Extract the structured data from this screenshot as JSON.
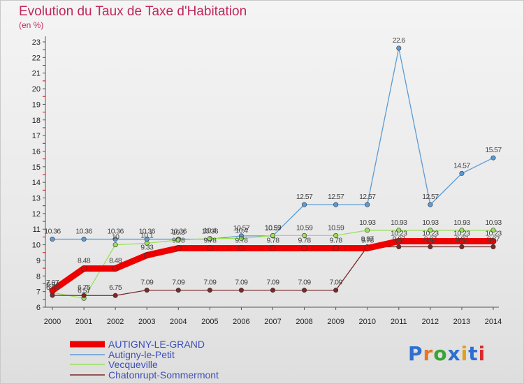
{
  "title": "Evolution du Taux de Taxe d'Habitation",
  "subtitle": "(en %)",
  "logo_text": "Proxiti",
  "chart_data": {
    "type": "line",
    "x": [
      2000,
      2001,
      2002,
      2003,
      2004,
      2005,
      2006,
      2007,
      2008,
      2009,
      2010,
      2011,
      2012,
      2013,
      2014
    ],
    "ylim": [
      6,
      23
    ],
    "y_ticks": [
      6,
      7,
      8,
      9,
      10,
      11,
      12,
      13,
      14,
      15,
      16,
      17,
      18,
      19,
      20,
      21,
      22,
      23
    ],
    "grid": false,
    "legend_position": "bottom-left",
    "series": [
      {
        "name": "AUTIGNY-LE-GRAND",
        "color": "#ee0000",
        "values": [
          7.07,
          8.48,
          8.48,
          9.33,
          9.78,
          9.78,
          9.78,
          9.78,
          9.78,
          9.78,
          9.78,
          10.23,
          10.23,
          10.23,
          10.23
        ],
        "labels": [
          "7.07",
          "8.48",
          "8.48",
          "9.33",
          "9.78",
          "9.78",
          "9.78",
          "9.78",
          "9.78",
          "9.78",
          "9.78",
          "10.23",
          "10.23",
          "10.23",
          "10.23"
        ]
      },
      {
        "name": "Autigny-le-Petit",
        "color": "#5b9bd5",
        "values": [
          10.36,
          10.36,
          10.36,
          10.36,
          10.36,
          10.36,
          10.57,
          10.57,
          12.57,
          12.57,
          12.57,
          22.6,
          12.57,
          14.57,
          15.57
        ],
        "labels": [
          "10.36",
          "10.36",
          "10.36",
          "10.36",
          "10.36",
          "10.36",
          "10.57",
          "10.57",
          "12.57",
          "12.57",
          "12.57",
          "22.6",
          "12.57",
          "14.57",
          "15.57"
        ]
      },
      {
        "name": "Vecqueville",
        "color": "#9be05a",
        "values": [
          6.94,
          6.57,
          10,
          10.1,
          10.3,
          10.4,
          10.4,
          10.59,
          10.59,
          10.59,
          10.93,
          10.93,
          10.93,
          10.93,
          10.93
        ],
        "labels": [
          "6.94",
          "6.57",
          "10",
          "10.1",
          "10.3",
          "10.4",
          "10.4",
          "10.59",
          "10.59",
          "10.59",
          "10.93",
          "10.93",
          "10.93",
          "10.93",
          "10.93"
        ]
      },
      {
        "name": "Chatonrupt-Sommermont",
        "color": "#7a2828",
        "values": [
          6.76,
          6.75,
          6.75,
          7.09,
          7.09,
          7.09,
          7.09,
          7.09,
          7.09,
          7.09,
          9.87,
          9.87,
          9.87,
          9.87,
          9.87
        ],
        "labels": [
          "6.76",
          "6.75",
          "6.75",
          "7.09",
          "7.09",
          "7.09",
          "7.09",
          "7.09",
          "7.09",
          "7.09",
          "9.87",
          "9.87",
          "9.87",
          "9.87",
          "9.87"
        ]
      }
    ]
  }
}
